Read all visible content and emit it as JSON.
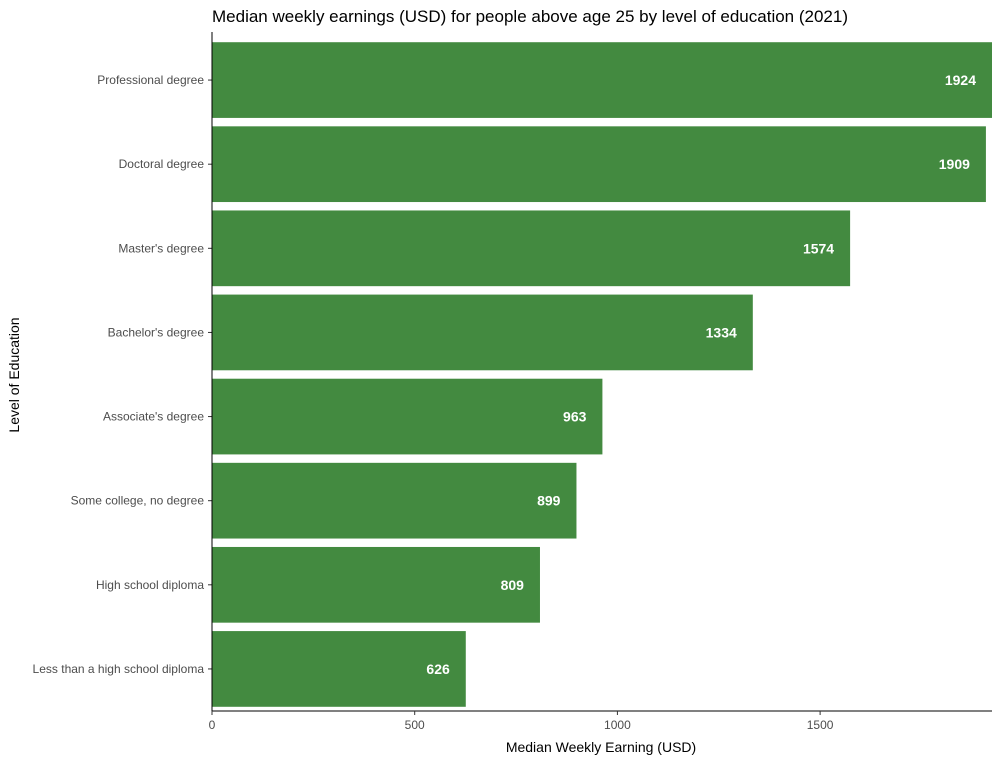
{
  "chart_data": {
    "type": "bar",
    "orientation": "horizontal",
    "title": "Median weekly earnings (USD) for people above age 25 by level of education (2021)",
    "xlabel": "Median Weekly Earning (USD)",
    "ylabel": "Level of Education",
    "categories": [
      "Professional degree",
      "Doctoral degree",
      "Master's degree",
      "Bachelor's degree",
      "Associate's degree",
      "Some college, no degree",
      "High school diploma",
      "Less than a high school diploma"
    ],
    "values": [
      1924,
      1909,
      1574,
      1334,
      963,
      899,
      809,
      626
    ],
    "xlim": [
      0,
      1924
    ],
    "xticks": [
      0,
      500,
      1000,
      1500
    ],
    "grid": false,
    "bar_color": "#438a40",
    "data_label_color": "#ffffff"
  }
}
